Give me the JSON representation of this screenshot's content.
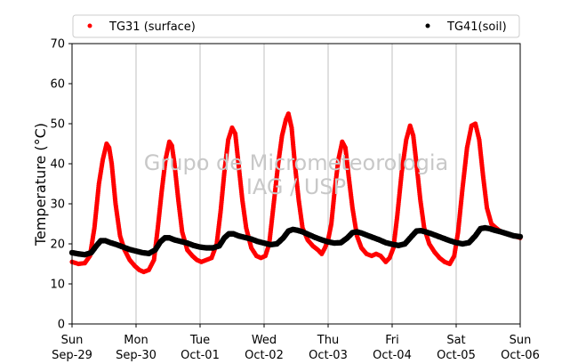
{
  "chart_data": {
    "type": "scatter",
    "ylabel": "Temperature (°C)",
    "xlabel": "",
    "ylim": [
      0,
      70
    ],
    "yticks": [
      0,
      10,
      20,
      30,
      40,
      50,
      60,
      70
    ],
    "xlim_days": [
      0,
      7
    ],
    "xticks": [
      {
        "day": 0,
        "line1": "Sun",
        "line2": "Sep-29"
      },
      {
        "day": 1,
        "line1": "Mon",
        "line2": "Sep-30"
      },
      {
        "day": 2,
        "line1": "Tue",
        "line2": "Oct-01"
      },
      {
        "day": 3,
        "line1": "Wed",
        "line2": "Oct-02"
      },
      {
        "day": 4,
        "line1": "Thu",
        "line2": "Oct-03"
      },
      {
        "day": 5,
        "line1": "Fri",
        "line2": "Oct-04"
      },
      {
        "day": 6,
        "line1": "Sat",
        "line2": "Oct-05"
      },
      {
        "day": 7,
        "line1": "Sun",
        "line2": "Oct-06"
      }
    ],
    "grid": "vertical",
    "legend_placement": "top",
    "watermark": [
      "Grupo de Micrometeorologia",
      "IAG / USP"
    ],
    "series": [
      {
        "name": "TG31 (surface)",
        "color": "#ff0000",
        "points": [
          [
            0.0,
            15.5
          ],
          [
            0.1,
            15.0
          ],
          [
            0.2,
            15.2
          ],
          [
            0.28,
            17.0
          ],
          [
            0.35,
            24.0
          ],
          [
            0.42,
            35.0
          ],
          [
            0.48,
            41.0
          ],
          [
            0.54,
            45.0
          ],
          [
            0.58,
            44.0
          ],
          [
            0.62,
            40.0
          ],
          [
            0.68,
            30.0
          ],
          [
            0.75,
            22.0
          ],
          [
            0.82,
            18.5
          ],
          [
            0.9,
            16.0
          ],
          [
            0.98,
            14.5
          ],
          [
            1.05,
            13.5
          ],
          [
            1.12,
            13.0
          ],
          [
            1.2,
            13.5
          ],
          [
            1.28,
            16.0
          ],
          [
            1.34,
            24.0
          ],
          [
            1.4,
            33.0
          ],
          [
            1.46,
            41.0
          ],
          [
            1.52,
            45.5
          ],
          [
            1.56,
            44.5
          ],
          [
            1.6,
            40.0
          ],
          [
            1.66,
            31.0
          ],
          [
            1.72,
            23.0
          ],
          [
            1.8,
            18.5
          ],
          [
            1.88,
            17.0
          ],
          [
            1.95,
            16.0
          ],
          [
            2.02,
            15.5
          ],
          [
            2.1,
            16.0
          ],
          [
            2.18,
            16.5
          ],
          [
            2.26,
            20.0
          ],
          [
            2.32,
            28.0
          ],
          [
            2.38,
            38.0
          ],
          [
            2.44,
            46.0
          ],
          [
            2.5,
            49.0
          ],
          [
            2.55,
            47.5
          ],
          [
            2.6,
            40.0
          ],
          [
            2.66,
            31.0
          ],
          [
            2.72,
            24.0
          ],
          [
            2.8,
            19.0
          ],
          [
            2.88,
            17.0
          ],
          [
            2.95,
            16.5
          ],
          [
            3.02,
            17.0
          ],
          [
            3.08,
            20.0
          ],
          [
            3.15,
            30.0
          ],
          [
            3.22,
            40.0
          ],
          [
            3.28,
            47.0
          ],
          [
            3.34,
            51.0
          ],
          [
            3.38,
            52.5
          ],
          [
            3.43,
            49.0
          ],
          [
            3.48,
            40.0
          ],
          [
            3.54,
            31.0
          ],
          [
            3.6,
            24.0
          ],
          [
            3.68,
            21.0
          ],
          [
            3.76,
            19.5
          ],
          [
            3.84,
            18.5
          ],
          [
            3.9,
            17.5
          ],
          [
            3.95,
            19.0
          ],
          [
            4.0,
            21.0
          ],
          [
            4.05,
            25.0
          ],
          [
            4.1,
            33.0
          ],
          [
            4.16,
            41.0
          ],
          [
            4.22,
            45.5
          ],
          [
            4.27,
            44.0
          ],
          [
            4.32,
            37.0
          ],
          [
            4.38,
            29.0
          ],
          [
            4.45,
            22.0
          ],
          [
            4.52,
            19.0
          ],
          [
            4.6,
            17.5
          ],
          [
            4.68,
            17.0
          ],
          [
            4.75,
            17.5
          ],
          [
            4.82,
            17.0
          ],
          [
            4.9,
            15.5
          ],
          [
            4.96,
            16.5
          ],
          [
            5.02,
            19.0
          ],
          [
            5.08,
            27.0
          ],
          [
            5.15,
            38.0
          ],
          [
            5.22,
            46.0
          ],
          [
            5.28,
            49.5
          ],
          [
            5.33,
            47.0
          ],
          [
            5.38,
            40.0
          ],
          [
            5.44,
            31.0
          ],
          [
            5.5,
            24.0
          ],
          [
            5.58,
            20.0
          ],
          [
            5.66,
            18.0
          ],
          [
            5.74,
            16.5
          ],
          [
            5.82,
            15.5
          ],
          [
            5.9,
            15.0
          ],
          [
            5.97,
            17.0
          ],
          [
            6.03,
            23.0
          ],
          [
            6.1,
            34.0
          ],
          [
            6.17,
            44.0
          ],
          [
            6.24,
            49.5
          ],
          [
            6.3,
            50.0
          ],
          [
            6.36,
            46.0
          ],
          [
            6.42,
            37.0
          ],
          [
            6.48,
            29.0
          ],
          [
            6.55,
            25.0
          ],
          [
            6.62,
            24.0
          ],
          [
            6.7,
            23.0
          ],
          [
            6.8,
            22.5
          ],
          [
            6.9,
            22.0
          ],
          [
            7.0,
            21.5
          ]
        ]
      },
      {
        "name": "TG41(soil)",
        "color": "#000000",
        "points": [
          [
            0.0,
            17.8
          ],
          [
            0.1,
            17.5
          ],
          [
            0.2,
            17.3
          ],
          [
            0.3,
            17.8
          ],
          [
            0.38,
            19.5
          ],
          [
            0.45,
            20.8
          ],
          [
            0.52,
            20.8
          ],
          [
            0.6,
            20.3
          ],
          [
            0.7,
            19.8
          ],
          [
            0.8,
            19.2
          ],
          [
            0.9,
            18.6
          ],
          [
            1.0,
            18.2
          ],
          [
            1.1,
            17.8
          ],
          [
            1.2,
            17.6
          ],
          [
            1.3,
            18.5
          ],
          [
            1.38,
            20.5
          ],
          [
            1.45,
            21.5
          ],
          [
            1.52,
            21.5
          ],
          [
            1.6,
            21.0
          ],
          [
            1.7,
            20.6
          ],
          [
            1.8,
            20.2
          ],
          [
            1.9,
            19.6
          ],
          [
            2.0,
            19.2
          ],
          [
            2.1,
            19.0
          ],
          [
            2.2,
            19.0
          ],
          [
            2.3,
            19.5
          ],
          [
            2.38,
            21.5
          ],
          [
            2.45,
            22.5
          ],
          [
            2.52,
            22.5
          ],
          [
            2.6,
            22.0
          ],
          [
            2.7,
            21.6
          ],
          [
            2.8,
            21.2
          ],
          [
            2.9,
            20.6
          ],
          [
            3.0,
            20.2
          ],
          [
            3.1,
            19.8
          ],
          [
            3.2,
            20.0
          ],
          [
            3.3,
            21.5
          ],
          [
            3.38,
            23.2
          ],
          [
            3.45,
            23.6
          ],
          [
            3.52,
            23.4
          ],
          [
            3.6,
            23.0
          ],
          [
            3.7,
            22.3
          ],
          [
            3.8,
            21.6
          ],
          [
            3.9,
            21.0
          ],
          [
            4.0,
            20.5
          ],
          [
            4.1,
            20.2
          ],
          [
            4.2,
            20.3
          ],
          [
            4.3,
            21.5
          ],
          [
            4.38,
            22.8
          ],
          [
            4.45,
            23.0
          ],
          [
            4.52,
            22.7
          ],
          [
            4.6,
            22.2
          ],
          [
            4.7,
            21.6
          ],
          [
            4.8,
            21.0
          ],
          [
            4.9,
            20.3
          ],
          [
            5.0,
            19.9
          ],
          [
            5.1,
            19.6
          ],
          [
            5.2,
            20.0
          ],
          [
            5.3,
            21.8
          ],
          [
            5.38,
            23.2
          ],
          [
            5.45,
            23.3
          ],
          [
            5.52,
            23.0
          ],
          [
            5.6,
            22.6
          ],
          [
            5.7,
            22.0
          ],
          [
            5.8,
            21.4
          ],
          [
            5.9,
            20.8
          ],
          [
            6.0,
            20.3
          ],
          [
            6.1,
            20.0
          ],
          [
            6.2,
            20.3
          ],
          [
            6.3,
            22.0
          ],
          [
            6.38,
            23.8
          ],
          [
            6.45,
            24.0
          ],
          [
            6.52,
            23.8
          ],
          [
            6.6,
            23.4
          ],
          [
            6.7,
            23.0
          ],
          [
            6.8,
            22.5
          ],
          [
            6.9,
            22.0
          ],
          [
            7.0,
            21.8
          ]
        ]
      }
    ]
  }
}
